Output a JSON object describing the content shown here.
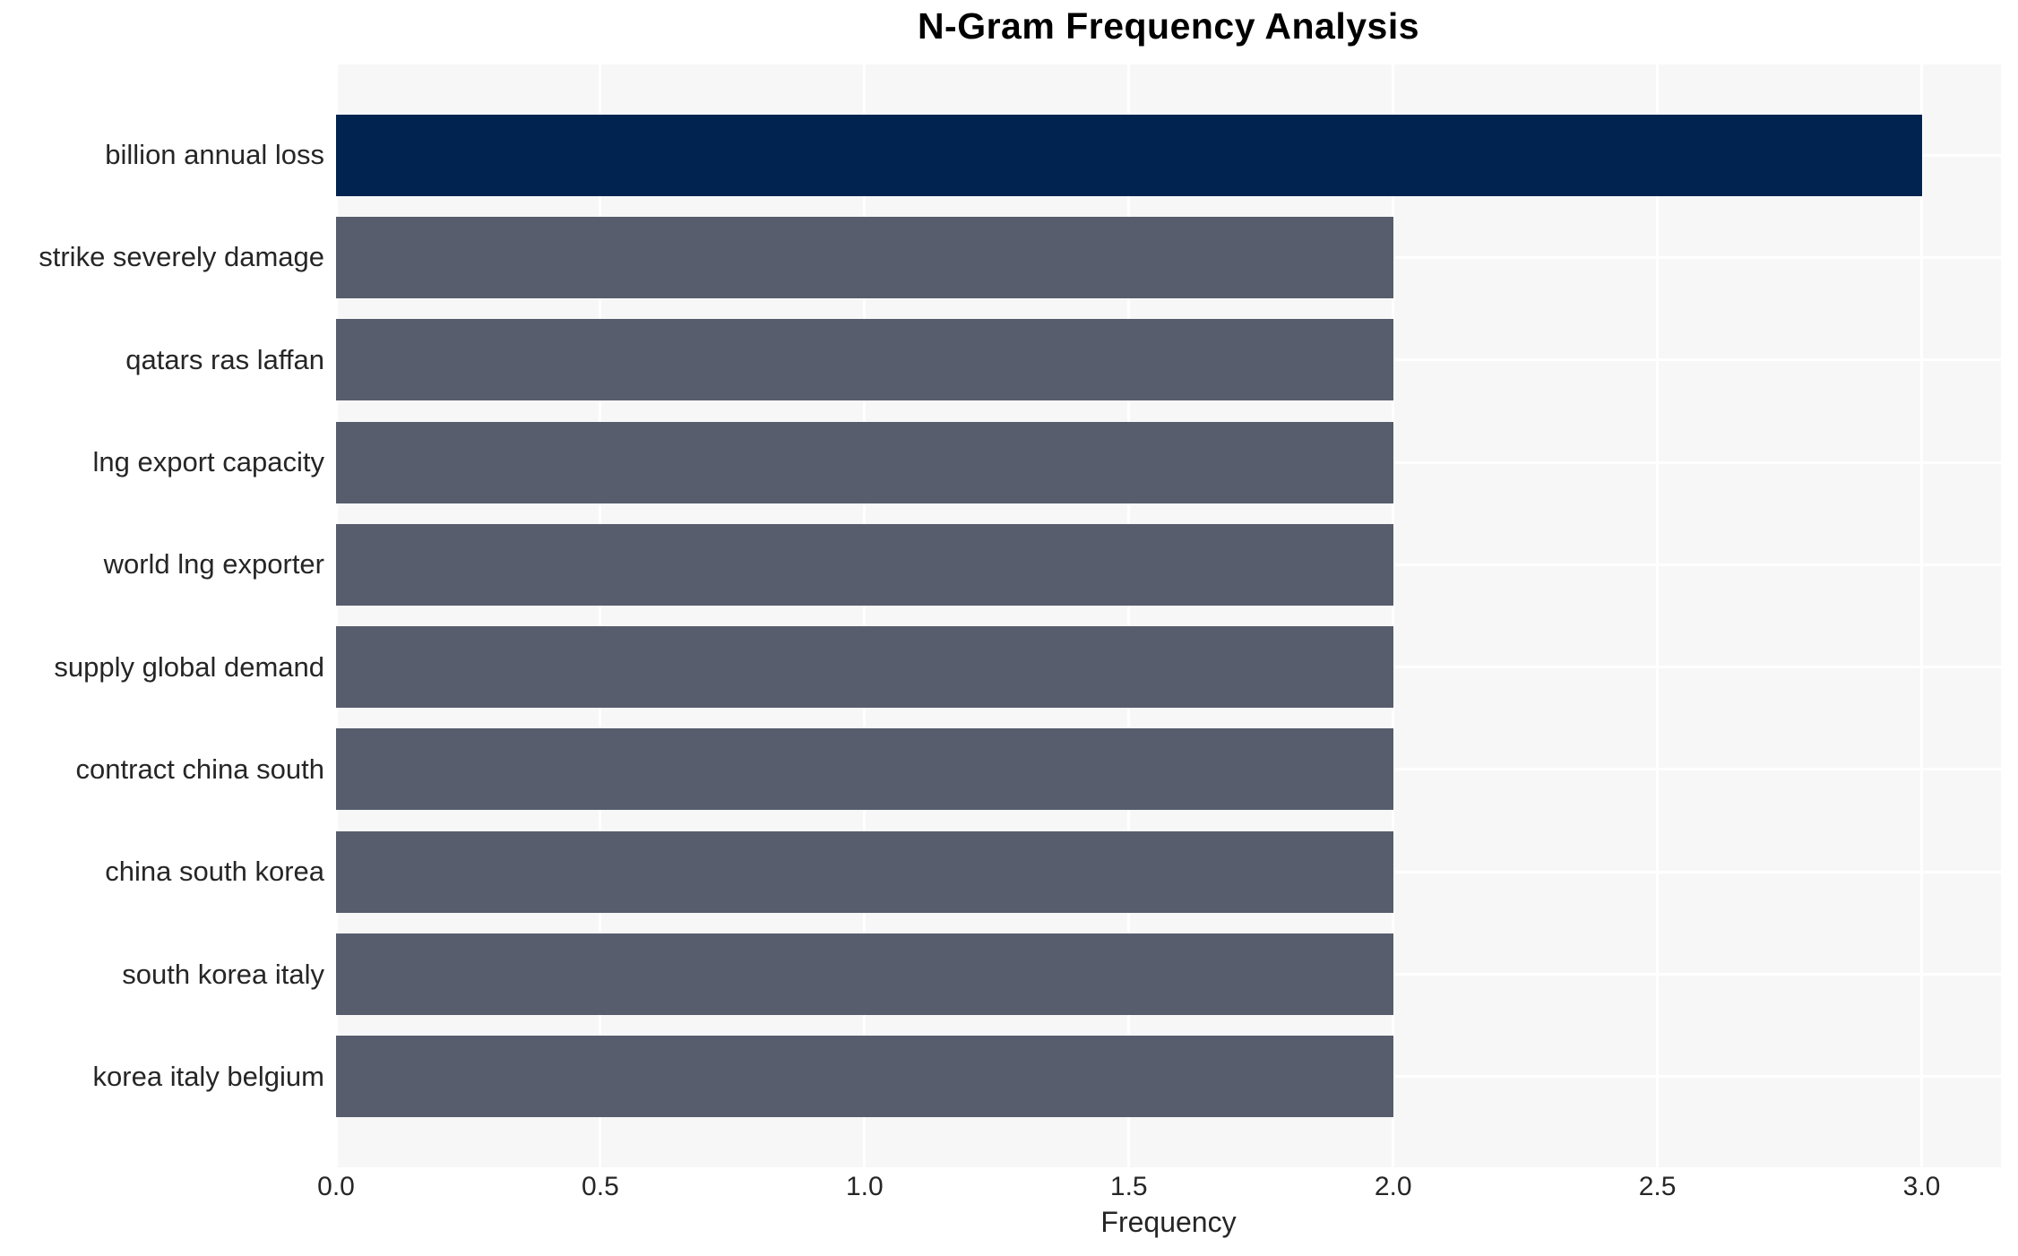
{
  "chart_data": {
    "type": "bar",
    "orientation": "horizontal",
    "title": "N-Gram Frequency Analysis",
    "xlabel": "Frequency",
    "ylabel": "",
    "categories": [
      "billion annual loss",
      "strike severely damage",
      "qatars ras laffan",
      "lng export capacity",
      "world lng exporter",
      "supply global demand",
      "contract china south",
      "china south korea",
      "south korea italy",
      "korea italy belgium"
    ],
    "values": [
      3,
      2,
      2,
      2,
      2,
      2,
      2,
      2,
      2,
      2
    ],
    "bar_colors": [
      "#012350",
      "#575d6c",
      "#575d6c",
      "#575d6c",
      "#575d6c",
      "#575d6c",
      "#575d6c",
      "#575d6c",
      "#575d6c",
      "#575d6c"
    ],
    "xtick_labels": [
      "0.0",
      "0.5",
      "1.0",
      "1.5",
      "2.0",
      "2.5",
      "3.0"
    ],
    "xtick_values": [
      0,
      0.5,
      1,
      1.5,
      2,
      2.5,
      3
    ],
    "xlim": [
      0,
      3.15
    ],
    "grid": true,
    "legend_position": "none",
    "colors": {
      "plot_background": "#f7f7f8",
      "gridline": "#ffffff",
      "title_text": "#000000",
      "tick_text": "#262626"
    }
  }
}
